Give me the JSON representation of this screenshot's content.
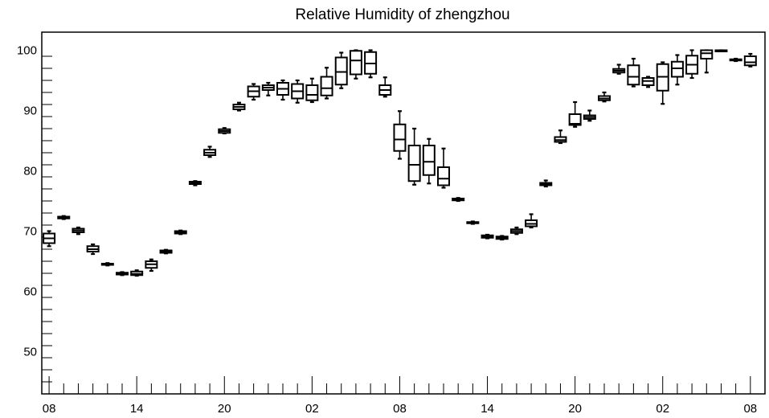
{
  "chart_data": {
    "type": "box",
    "title": "Relative Humidity of zhengzhou",
    "xlabel": "",
    "ylabel": "",
    "ylim": [
      43,
      103
    ],
    "y_ticks": [
      50,
      60,
      70,
      80,
      90,
      100
    ],
    "x_tick_labels": [
      "08",
      "14",
      "20",
      "02",
      "08",
      "14",
      "20",
      "02",
      "08"
    ],
    "x_tick_hours": [
      0,
      6,
      12,
      18,
      24,
      30,
      36,
      42,
      48
    ],
    "xlim": [
      -0.5,
      49
    ],
    "grid": false,
    "legend": "none",
    "boxes": [
      {
        "hour": 0,
        "min": 67.5,
        "q1": 68.0,
        "median": 68.8,
        "q3": 69.6,
        "max": 70.0
      },
      {
        "hour": 1,
        "min": 72.0,
        "q1": 72.1,
        "median": 72.3,
        "q3": 72.4,
        "max": 72.5
      },
      {
        "hour": 2,
        "min": 69.5,
        "q1": 69.8,
        "median": 70.1,
        "q3": 70.4,
        "max": 70.6
      },
      {
        "hour": 3,
        "min": 66.2,
        "q1": 66.6,
        "median": 67.0,
        "q3": 67.5,
        "max": 67.8
      },
      {
        "hour": 4,
        "min": 64.3,
        "q1": 64.4,
        "median": 64.5,
        "q3": 64.6,
        "max": 64.7
      },
      {
        "hour": 5,
        "min": 62.7,
        "q1": 62.8,
        "median": 62.9,
        "q3": 63.1,
        "max": 63.2
      },
      {
        "hour": 6,
        "min": 62.6,
        "q1": 62.7,
        "median": 62.9,
        "q3": 63.3,
        "max": 63.5
      },
      {
        "hour": 7,
        "min": 63.4,
        "q1": 63.9,
        "median": 64.5,
        "q3": 65.0,
        "max": 65.3
      },
      {
        "hour": 8,
        "min": 66.3,
        "q1": 66.4,
        "median": 66.6,
        "q3": 66.8,
        "max": 66.9
      },
      {
        "hour": 9,
        "min": 69.5,
        "q1": 69.6,
        "median": 69.8,
        "q3": 70.0,
        "max": 70.1
      },
      {
        "hour": 10,
        "min": 77.6,
        "q1": 77.8,
        "median": 78.0,
        "q3": 78.2,
        "max": 78.3
      },
      {
        "hour": 11,
        "min": 82.3,
        "q1": 82.6,
        "median": 83.0,
        "q3": 83.5,
        "max": 84.0
      },
      {
        "hour": 12,
        "min": 86.2,
        "q1": 86.3,
        "median": 86.6,
        "q3": 86.9,
        "max": 87.1
      },
      {
        "hour": 13,
        "min": 90.0,
        "q1": 90.2,
        "median": 90.6,
        "q3": 91.0,
        "max": 91.3
      },
      {
        "hour": 14,
        "min": 91.8,
        "q1": 92.3,
        "median": 93.2,
        "q3": 94.0,
        "max": 94.4
      },
      {
        "hour": 15,
        "min": 92.5,
        "q1": 93.4,
        "median": 93.8,
        "q3": 94.2,
        "max": 94.6
      },
      {
        "hour": 16,
        "min": 91.8,
        "q1": 92.6,
        "median": 93.6,
        "q3": 94.6,
        "max": 95.0
      },
      {
        "hour": 17,
        "min": 91.3,
        "q1": 92.0,
        "median": 93.2,
        "q3": 94.4,
        "max": 95.0
      },
      {
        "hour": 18,
        "min": 91.4,
        "q1": 91.7,
        "median": 92.6,
        "q3": 94.2,
        "max": 95.3
      },
      {
        "hour": 19,
        "min": 92.0,
        "q1": 92.5,
        "median": 93.7,
        "q3": 95.6,
        "max": 97.1
      },
      {
        "hour": 20,
        "min": 93.7,
        "q1": 94.3,
        "median": 96.4,
        "q3": 98.8,
        "max": 99.6
      },
      {
        "hour": 21,
        "min": 95.3,
        "q1": 96.0,
        "median": 98.3,
        "q3": 99.9,
        "max": 100.0
      },
      {
        "hour": 22,
        "min": 95.5,
        "q1": 96.1,
        "median": 97.8,
        "q3": 99.7,
        "max": 100.0
      },
      {
        "hour": 23,
        "min": 92.3,
        "q1": 92.6,
        "median": 93.4,
        "q3": 94.2,
        "max": 95.5
      },
      {
        "hour": 24,
        "min": 82.0,
        "q1": 83.3,
        "median": 85.2,
        "q3": 87.7,
        "max": 89.9
      },
      {
        "hour": 25,
        "min": 77.7,
        "q1": 78.3,
        "median": 81.0,
        "q3": 84.2,
        "max": 87.0
      },
      {
        "hour": 26,
        "min": 77.9,
        "q1": 79.3,
        "median": 81.5,
        "q3": 84.2,
        "max": 85.3
      },
      {
        "hour": 27,
        "min": 77.2,
        "q1": 77.6,
        "median": 78.7,
        "q3": 80.6,
        "max": 83.7
      },
      {
        "hour": 28,
        "min": 75.0,
        "q1": 75.1,
        "median": 75.3,
        "q3": 75.4,
        "max": 75.5
      },
      {
        "hour": 29,
        "min": 71.2,
        "q1": 71.3,
        "median": 71.4,
        "q3": 71.5,
        "max": 71.6
      },
      {
        "hour": 30,
        "min": 68.8,
        "q1": 68.9,
        "median": 69.1,
        "q3": 69.3,
        "max": 69.4
      },
      {
        "hour": 31,
        "min": 68.6,
        "q1": 68.7,
        "median": 68.9,
        "q3": 69.1,
        "max": 69.2
      },
      {
        "hour": 32,
        "min": 69.5,
        "q1": 69.7,
        "median": 70.0,
        "q3": 70.3,
        "max": 70.6
      },
      {
        "hour": 33,
        "min": 70.6,
        "q1": 70.8,
        "median": 71.2,
        "q3": 71.8,
        "max": 72.8
      },
      {
        "hour": 34,
        "min": 77.4,
        "q1": 77.6,
        "median": 77.8,
        "q3": 78.0,
        "max": 78.4
      },
      {
        "hour": 35,
        "min": 84.6,
        "q1": 84.8,
        "median": 85.1,
        "q3": 85.6,
        "max": 86.7
      },
      {
        "hour": 36,
        "min": 87.3,
        "q1": 87.6,
        "median": 87.8,
        "q3": 89.4,
        "max": 91.4
      },
      {
        "hour": 37,
        "min": 88.3,
        "q1": 88.6,
        "median": 88.9,
        "q3": 89.2,
        "max": 90.0
      },
      {
        "hour": 38,
        "min": 91.5,
        "q1": 91.7,
        "median": 92.0,
        "q3": 92.4,
        "max": 93.0
      },
      {
        "hour": 39,
        "min": 96.1,
        "q1": 96.3,
        "median": 96.6,
        "q3": 96.9,
        "max": 97.6
      },
      {
        "hour": 40,
        "min": 94.0,
        "q1": 94.3,
        "median": 95.6,
        "q3": 97.5,
        "max": 98.6
      },
      {
        "hour": 41,
        "min": 93.9,
        "q1": 94.2,
        "median": 94.9,
        "q3": 95.4,
        "max": 95.6
      },
      {
        "hour": 42,
        "min": 91.1,
        "q1": 93.3,
        "median": 95.6,
        "q3": 97.7,
        "max": 98.0
      },
      {
        "hour": 43,
        "min": 94.3,
        "q1": 95.6,
        "median": 97.0,
        "q3": 98.1,
        "max": 99.2
      },
      {
        "hour": 44,
        "min": 95.4,
        "q1": 96.1,
        "median": 97.6,
        "q3": 99.1,
        "max": 100.0
      },
      {
        "hour": 45,
        "min": 96.3,
        "q1": 98.6,
        "median": 99.5,
        "q3": 100.0,
        "max": 100.0
      },
      {
        "hour": 46,
        "min": 99.9,
        "q1": 100.0,
        "median": 100.0,
        "q3": 100.0,
        "max": 100.0
      },
      {
        "hour": 47,
        "min": 98.2,
        "q1": 98.3,
        "median": 98.4,
        "q3": 98.5,
        "max": 98.6
      },
      {
        "hour": 48,
        "min": 97.3,
        "q1": 97.5,
        "median": 98.0,
        "q3": 99.0,
        "max": 99.4
      }
    ]
  }
}
